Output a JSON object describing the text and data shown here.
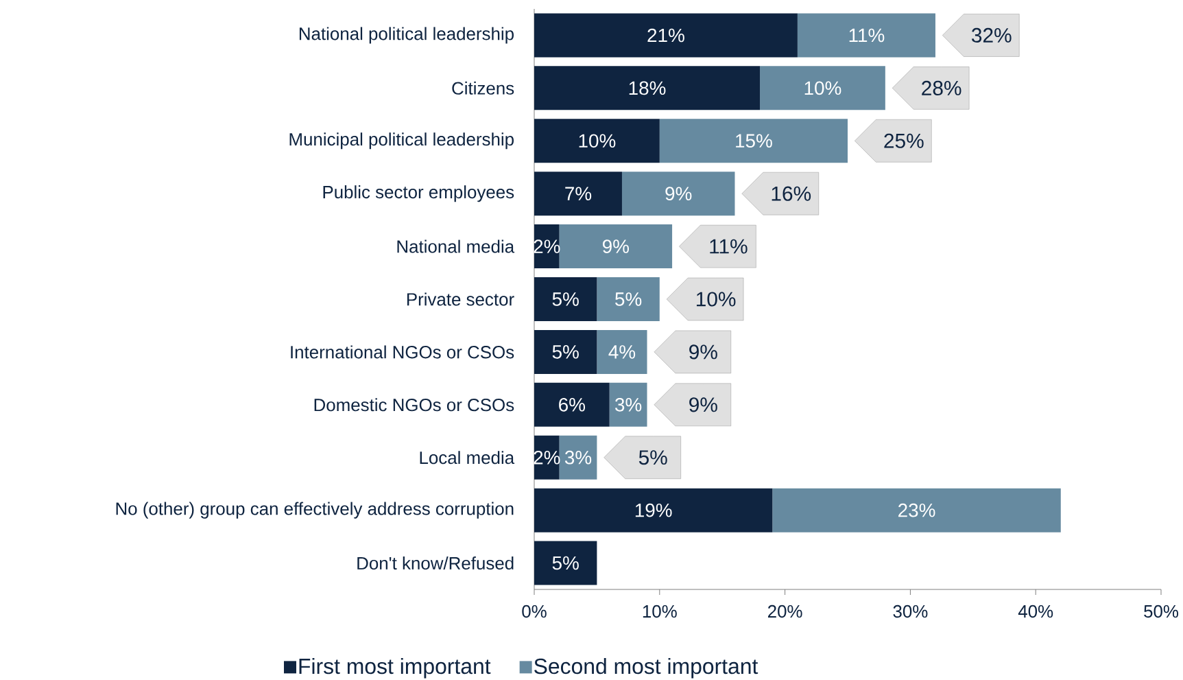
{
  "chart_data": {
    "type": "bar",
    "orientation": "horizontal",
    "stacked": true,
    "legend": "bottom",
    "categories": [
      "National political leadership",
      "Citizens",
      "Municipal political leadership",
      "Public sector employees",
      "National media",
      "Private sector",
      "International NGOs or CSOs",
      "Domestic NGOs or CSOs",
      "Local media",
      "No (other) group can effectively address corruption",
      "Don't know/Refused"
    ],
    "series": [
      {
        "name": "First most important",
        "color": "#0f2440",
        "values": [
          21,
          18,
          10,
          7,
          2,
          5,
          5,
          6,
          2,
          19,
          5
        ],
        "value_labels": [
          "21%",
          "18%",
          "10%",
          "7%",
          "2%",
          "5%",
          "5%",
          "6%",
          "2%",
          "19%",
          "5%"
        ]
      },
      {
        "name": "Second most important",
        "color": "#668aa0",
        "values": [
          11,
          10,
          15,
          9,
          9,
          5,
          4,
          3,
          3,
          23,
          null
        ],
        "value_labels": [
          "11%",
          "10%",
          "15%",
          "9%",
          "9%",
          "5%",
          "4%",
          "3%",
          "3%",
          "23%",
          null
        ]
      }
    ],
    "totals": [
      "32%",
      "28%",
      "25%",
      "16%",
      "11%",
      "10%",
      "9%",
      "9%",
      "5%",
      null,
      null
    ],
    "xlim": [
      0,
      50
    ],
    "xticks": [
      {
        "value": 0,
        "label": "0%"
      },
      {
        "value": 10,
        "label": "10%"
      },
      {
        "value": 20,
        "label": "20%"
      },
      {
        "value": 30,
        "label": "30%"
      },
      {
        "value": 40,
        "label": "40%"
      },
      {
        "value": 50,
        "label": "50%"
      }
    ]
  }
}
